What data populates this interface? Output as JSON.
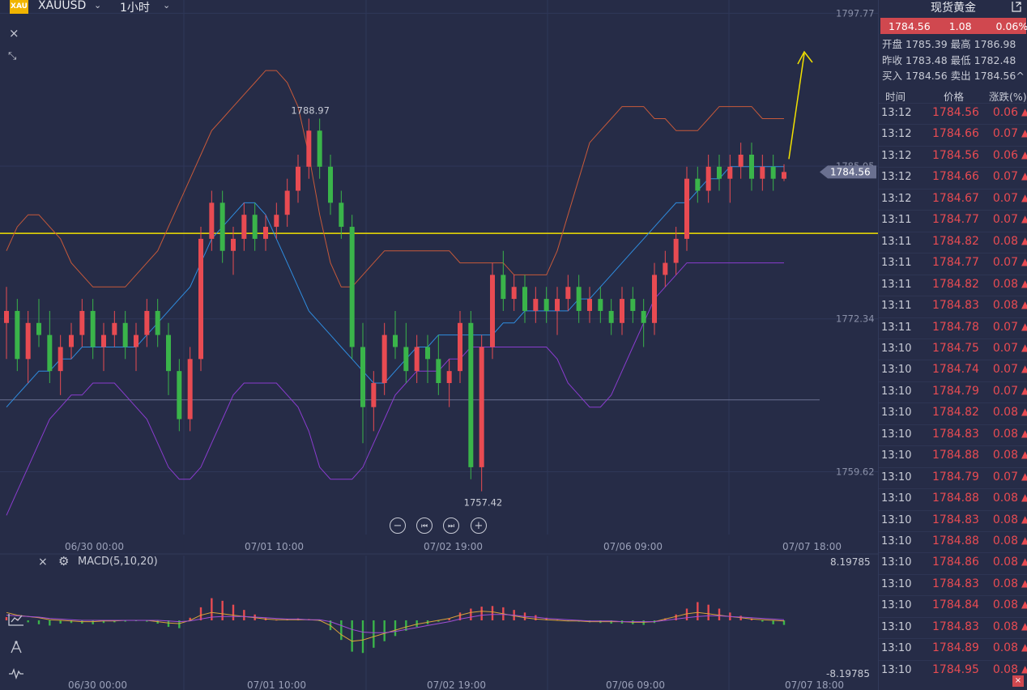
{
  "toolbar": {
    "logo_text": "XAU",
    "symbol": "XAUUSD",
    "interval": "1小时",
    "chevron": "⌄",
    "close_icon": "close-icon",
    "collapse_icon": "collapse-icon"
  },
  "chart_data": [
    {
      "type": "candlestick",
      "title": "",
      "x_ticks": [
        "06/30 00:00",
        "07/01 10:00",
        "07/02 19:00",
        "07/06 09:00",
        "07/07 18:00"
      ],
      "y_ticks": [
        1797.77,
        1772.34,
        1759.62
      ],
      "ylim": [
        1754.4,
        1798.6
      ],
      "last_price_label": "1784.56",
      "hidden_tick_label": "1785.05",
      "high_annotation": "1788.97",
      "low_annotation": "1757.42",
      "horizontal_lines": [
        1779.46,
        1765.6
      ],
      "grid": true,
      "candles": [
        [
          1772,
          1775,
          1769,
          1773
        ],
        [
          1773,
          1774,
          1768,
          1769
        ],
        [
          1769,
          1773,
          1767,
          1772
        ],
        [
          1772,
          1774,
          1770,
          1771
        ],
        [
          1771,
          1773,
          1767,
          1768
        ],
        [
          1768,
          1771,
          1766,
          1770
        ],
        [
          1770,
          1772,
          1769,
          1771
        ],
        [
          1771,
          1774,
          1770,
          1773
        ],
        [
          1773,
          1774,
          1769,
          1770
        ],
        [
          1770,
          1772,
          1768,
          1771
        ],
        [
          1771,
          1773,
          1770,
          1772
        ],
        [
          1772,
          1773,
          1769,
          1770
        ],
        [
          1770,
          1772,
          1768,
          1771
        ],
        [
          1771,
          1774,
          1770,
          1773
        ],
        [
          1773,
          1774,
          1770,
          1771
        ],
        [
          1771,
          1772,
          1766,
          1768
        ],
        [
          1768,
          1769,
          1763,
          1764
        ],
        [
          1764,
          1770,
          1763,
          1769
        ],
        [
          1769,
          1780,
          1768,
          1779
        ],
        [
          1779,
          1783,
          1778,
          1782
        ],
        [
          1782,
          1783,
          1777,
          1778
        ],
        [
          1778,
          1780,
          1776,
          1779
        ],
        [
          1779,
          1782,
          1778,
          1781
        ],
        [
          1781,
          1782,
          1778,
          1779
        ],
        [
          1779,
          1781,
          1778,
          1780
        ],
        [
          1780,
          1782,
          1779,
          1781
        ],
        [
          1781,
          1784,
          1780,
          1783
        ],
        [
          1783,
          1786,
          1782,
          1785
        ],
        [
          1785,
          1789,
          1784,
          1788
        ],
        [
          1788,
          1789,
          1784,
          1785
        ],
        [
          1785,
          1786,
          1781,
          1782
        ],
        [
          1782,
          1783,
          1779,
          1780
        ],
        [
          1780,
          1781,
          1769,
          1770
        ],
        [
          1770,
          1772,
          1762,
          1765
        ],
        [
          1765,
          1768,
          1763,
          1767
        ],
        [
          1767,
          1772,
          1766,
          1771
        ],
        [
          1771,
          1773,
          1769,
          1770
        ],
        [
          1770,
          1772,
          1767,
          1768
        ],
        [
          1768,
          1771,
          1767,
          1770
        ],
        [
          1770,
          1771,
          1767,
          1769
        ],
        [
          1769,
          1771,
          1766,
          1767
        ],
        [
          1767,
          1769,
          1765,
          1768
        ],
        [
          1768,
          1773,
          1767,
          1772
        ],
        [
          1772,
          1773,
          1759,
          1760
        ],
        [
          1760,
          1771,
          1758,
          1770
        ],
        [
          1770,
          1777,
          1769,
          1776
        ],
        [
          1776,
          1778,
          1773,
          1774
        ],
        [
          1774,
          1776,
          1773,
          1775
        ],
        [
          1775,
          1776,
          1772,
          1773
        ],
        [
          1773,
          1775,
          1772,
          1774
        ],
        [
          1774,
          1775,
          1772,
          1773
        ],
        [
          1773,
          1775,
          1771,
          1774
        ],
        [
          1774,
          1776,
          1773,
          1775
        ],
        [
          1775,
          1776,
          1772,
          1773
        ],
        [
          1773,
          1775,
          1772,
          1774
        ],
        [
          1774,
          1775,
          1772,
          1773
        ],
        [
          1773,
          1774,
          1771,
          1772
        ],
        [
          1772,
          1775,
          1771,
          1774
        ],
        [
          1774,
          1775,
          1772,
          1773
        ],
        [
          1773,
          1774,
          1770,
          1772
        ],
        [
          1772,
          1777,
          1771,
          1776
        ],
        [
          1776,
          1778,
          1775,
          1777
        ],
        [
          1777,
          1780,
          1776,
          1779
        ],
        [
          1779,
          1785,
          1778,
          1784
        ],
        [
          1784,
          1785,
          1782,
          1783
        ],
        [
          1783,
          1786,
          1782,
          1785
        ],
        [
          1785,
          1786,
          1783,
          1784
        ],
        [
          1784,
          1786,
          1782,
          1785
        ],
        [
          1785,
          1787,
          1784,
          1786
        ],
        [
          1786,
          1787,
          1783,
          1784
        ],
        [
          1784,
          1786,
          1783,
          1785
        ],
        [
          1785,
          1786,
          1783,
          1784
        ],
        [
          1784,
          1785.2,
          1783.8,
          1784.56
        ]
      ],
      "bollinger_upper": [
        1778,
        1780,
        1781,
        1781,
        1780,
        1779,
        1777,
        1776,
        1775,
        1775,
        1775,
        1775,
        1776,
        1777,
        1778,
        1780,
        1782,
        1784,
        1786,
        1788,
        1789,
        1790,
        1791,
        1792,
        1793,
        1793,
        1792,
        1790,
        1786,
        1781,
        1777,
        1775,
        1775,
        1776,
        1777,
        1778,
        1778,
        1778,
        1778,
        1778,
        1778,
        1778,
        1777,
        1777,
        1777,
        1777,
        1777,
        1776,
        1776,
        1776,
        1776,
        1778,
        1781,
        1784,
        1787,
        1788,
        1789,
        1790,
        1790,
        1790,
        1789,
        1789,
        1788,
        1788,
        1788,
        1789,
        1790,
        1790,
        1790,
        1790,
        1789,
        1789,
        1789
      ],
      "bollinger_lower": [
        1756,
        1758,
        1760,
        1762,
        1764,
        1765,
        1766,
        1766,
        1767,
        1767,
        1767,
        1766,
        1765,
        1764,
        1762,
        1760,
        1759,
        1759,
        1760,
        1762,
        1764,
        1766,
        1767,
        1767,
        1767,
        1767,
        1766,
        1765,
        1763,
        1760,
        1759,
        1759,
        1759,
        1760,
        1762,
        1764,
        1766,
        1767,
        1768,
        1768,
        1768,
        1769,
        1769,
        1770,
        1770,
        1770,
        1770,
        1770,
        1770,
        1770,
        1770,
        1769,
        1767,
        1766,
        1765,
        1765,
        1766,
        1768,
        1770,
        1772,
        1774,
        1775,
        1776,
        1777,
        1777,
        1777,
        1777,
        1777,
        1777,
        1777,
        1777,
        1777,
        1777
      ],
      "ma_blue": [
        1765,
        1766,
        1767,
        1768,
        1768,
        1769,
        1769,
        1770,
        1770,
        1770,
        1770,
        1770,
        1770,
        1771,
        1772,
        1773,
        1774,
        1775,
        1777,
        1779,
        1780,
        1781,
        1782,
        1782,
        1781,
        1779,
        1777,
        1775,
        1773,
        1772,
        1771,
        1770,
        1769,
        1768,
        1767,
        1767,
        1768,
        1769,
        1770,
        1770,
        1771,
        1771,
        1771,
        1771,
        1771,
        1771,
        1772,
        1772,
        1773,
        1773,
        1773,
        1773,
        1773,
        1774,
        1774,
        1775,
        1776,
        1777,
        1778,
        1779,
        1780,
        1781,
        1782,
        1782,
        1783,
        1784,
        1784,
        1785,
        1785,
        1785,
        1785,
        1785,
        1785
      ]
    },
    {
      "type": "histogram",
      "title": "MACD(5,10,20)",
      "x_ticks": [
        "06/30 00:00",
        "07/01 10:00",
        "07/02 19:00",
        "07/06 09:00",
        "07/07 18:00"
      ],
      "y_ticks": [
        8.19785,
        -8.19785
      ],
      "ylim": [
        -8.19785,
        8.19785
      ],
      "histogram": [
        0.5,
        0.2,
        -0.3,
        -0.6,
        -0.8,
        -0.5,
        -0.4,
        -0.5,
        -0.6,
        -0.4,
        -0.3,
        -0.2,
        -0.1,
        -0.2,
        -0.5,
        -1.0,
        -1.2,
        0.4,
        2.0,
        3.4,
        3.0,
        2.4,
        1.6,
        0.9,
        0.4,
        0.1,
        0.2,
        0.3,
        0.2,
        -0.1,
        -1.5,
        -3.0,
        -4.8,
        -5.0,
        -4.2,
        -3.2,
        -2.4,
        -1.6,
        -1.0,
        -0.6,
        -0.2,
        0.3,
        1.2,
        1.8,
        2.1,
        2.2,
        2.0,
        1.6,
        1.2,
        0.8,
        0.4,
        0.1,
        -0.1,
        -0.2,
        -0.3,
        -0.4,
        -0.5,
        -0.5,
        -0.6,
        -0.7,
        -0.4,
        0.3,
        0.9,
        1.8,
        2.8,
        2.4,
        1.8,
        1.2,
        0.7,
        0.3,
        -0.2,
        -0.6,
        -0.7
      ],
      "dif": [
        1.2,
        0.8,
        0.6,
        0.4,
        0.1,
        0.0,
        -0.1,
        -0.2,
        -0.2,
        -0.1,
        -0.1,
        0.0,
        0.0,
        0.0,
        -0.2,
        -0.4,
        -0.5,
        0.0,
        0.8,
        1.2,
        1.0,
        0.8,
        0.6,
        0.4,
        0.2,
        0.1,
        0.1,
        0.1,
        0.1,
        0.0,
        -0.8,
        -2.2,
        -3.2,
        -3.0,
        -2.5,
        -2.0,
        -1.5,
        -1.0,
        -0.6,
        -0.3,
        0.0,
        0.3,
        0.8,
        1.2,
        1.4,
        1.3,
        1.0,
        0.7,
        0.4,
        0.2,
        0.1,
        0.0,
        -0.1,
        -0.1,
        -0.2,
        -0.2,
        -0.2,
        -0.2,
        -0.3,
        -0.3,
        -0.2,
        0.2,
        0.6,
        1.0,
        1.2,
        1.0,
        0.8,
        0.6,
        0.4,
        0.2,
        0.1,
        0.0,
        -0.1
      ],
      "dea": [
        0.8,
        0.7,
        0.6,
        0.5,
        0.3,
        0.2,
        0.1,
        0.0,
        0.0,
        0.0,
        0.0,
        0.0,
        0.0,
        0.0,
        0.0,
        -0.1,
        -0.2,
        -0.1,
        0.2,
        0.5,
        0.6,
        0.6,
        0.6,
        0.5,
        0.4,
        0.3,
        0.2,
        0.2,
        0.1,
        0.1,
        -0.2,
        -0.8,
        -1.4,
        -1.8,
        -1.9,
        -1.9,
        -1.7,
        -1.4,
        -1.1,
        -0.8,
        -0.5,
        -0.2,
        0.2,
        0.5,
        0.8,
        0.9,
        0.9,
        0.8,
        0.6,
        0.5,
        0.3,
        0.2,
        0.1,
        0.0,
        -0.1,
        -0.1,
        -0.1,
        -0.2,
        -0.2,
        -0.2,
        -0.2,
        0.0,
        0.2,
        0.4,
        0.6,
        0.7,
        0.7,
        0.6,
        0.5,
        0.4,
        0.3,
        0.2,
        0.1
      ]
    }
  ],
  "macd_header": {
    "close_icon": "close-icon",
    "settings_icon": "gear-icon",
    "label": "MACD(5,10,20)"
  },
  "zoom_controls": {
    "zoom_out": "−",
    "prev": "⏮",
    "next": "⏭",
    "zoom_in": "+"
  },
  "left_tools": [
    "indicator-icon",
    "drawing-icon",
    "pulse-icon"
  ],
  "colors": {
    "background": "#262c47",
    "up": "#e84b52",
    "down": "#3ab44a",
    "yellow_line": "#f2e100",
    "bollinger": "#c7593a",
    "bollinger_lower": "#8a3ccf",
    "ma": "#2f8de0",
    "accent_quote": "#d0484f"
  },
  "panel": {
    "title": "现货黄金",
    "export_icon": "export-icon",
    "quote": {
      "price": "1784.56",
      "change": "1.08",
      "percent": "0.06%"
    },
    "stats": [
      {
        "l1": "开盘",
        "v1": "1785.39",
        "l2": "最高",
        "v2": "1786.98"
      },
      {
        "l1": "昨收",
        "v1": "1783.48",
        "l2": "最低",
        "v2": "1782.48"
      },
      {
        "l1": "买入",
        "v1": "1784.56",
        "l2": "卖出",
        "v2": "1784.56"
      }
    ],
    "collapse_icon": "^",
    "headers": {
      "time": "时间",
      "price": "价格",
      "change": "涨跌(%)"
    },
    "rows": [
      {
        "time": "13:12",
        "price": "1784.56",
        "change": "0.06"
      },
      {
        "time": "13:12",
        "price": "1784.66",
        "change": "0.07"
      },
      {
        "time": "13:12",
        "price": "1784.56",
        "change": "0.06"
      },
      {
        "time": "13:12",
        "price": "1784.66",
        "change": "0.07"
      },
      {
        "time": "13:12",
        "price": "1784.67",
        "change": "0.07"
      },
      {
        "time": "13:11",
        "price": "1784.77",
        "change": "0.07"
      },
      {
        "time": "13:11",
        "price": "1784.82",
        "change": "0.08"
      },
      {
        "time": "13:11",
        "price": "1784.77",
        "change": "0.07"
      },
      {
        "time": "13:11",
        "price": "1784.82",
        "change": "0.08"
      },
      {
        "time": "13:11",
        "price": "1784.83",
        "change": "0.08"
      },
      {
        "time": "13:11",
        "price": "1784.78",
        "change": "0.07"
      },
      {
        "time": "13:10",
        "price": "1784.75",
        "change": "0.07"
      },
      {
        "time": "13:10",
        "price": "1784.74",
        "change": "0.07"
      },
      {
        "time": "13:10",
        "price": "1784.79",
        "change": "0.07"
      },
      {
        "time": "13:10",
        "price": "1784.82",
        "change": "0.08"
      },
      {
        "time": "13:10",
        "price": "1784.83",
        "change": "0.08"
      },
      {
        "time": "13:10",
        "price": "1784.88",
        "change": "0.08"
      },
      {
        "time": "13:10",
        "price": "1784.79",
        "change": "0.07"
      },
      {
        "time": "13:10",
        "price": "1784.88",
        "change": "0.08"
      },
      {
        "time": "13:10",
        "price": "1784.83",
        "change": "0.08"
      },
      {
        "time": "13:10",
        "price": "1784.88",
        "change": "0.08"
      },
      {
        "time": "13:10",
        "price": "1784.86",
        "change": "0.08"
      },
      {
        "time": "13:10",
        "price": "1784.83",
        "change": "0.08"
      },
      {
        "time": "13:10",
        "price": "1784.84",
        "change": "0.08"
      },
      {
        "time": "13:10",
        "price": "1784.83",
        "change": "0.08"
      },
      {
        "time": "13:10",
        "price": "1784.89",
        "change": "0.08"
      },
      {
        "time": "13:10",
        "price": "1784.95",
        "change": "0.08"
      }
    ],
    "row_arrow": "▲"
  }
}
